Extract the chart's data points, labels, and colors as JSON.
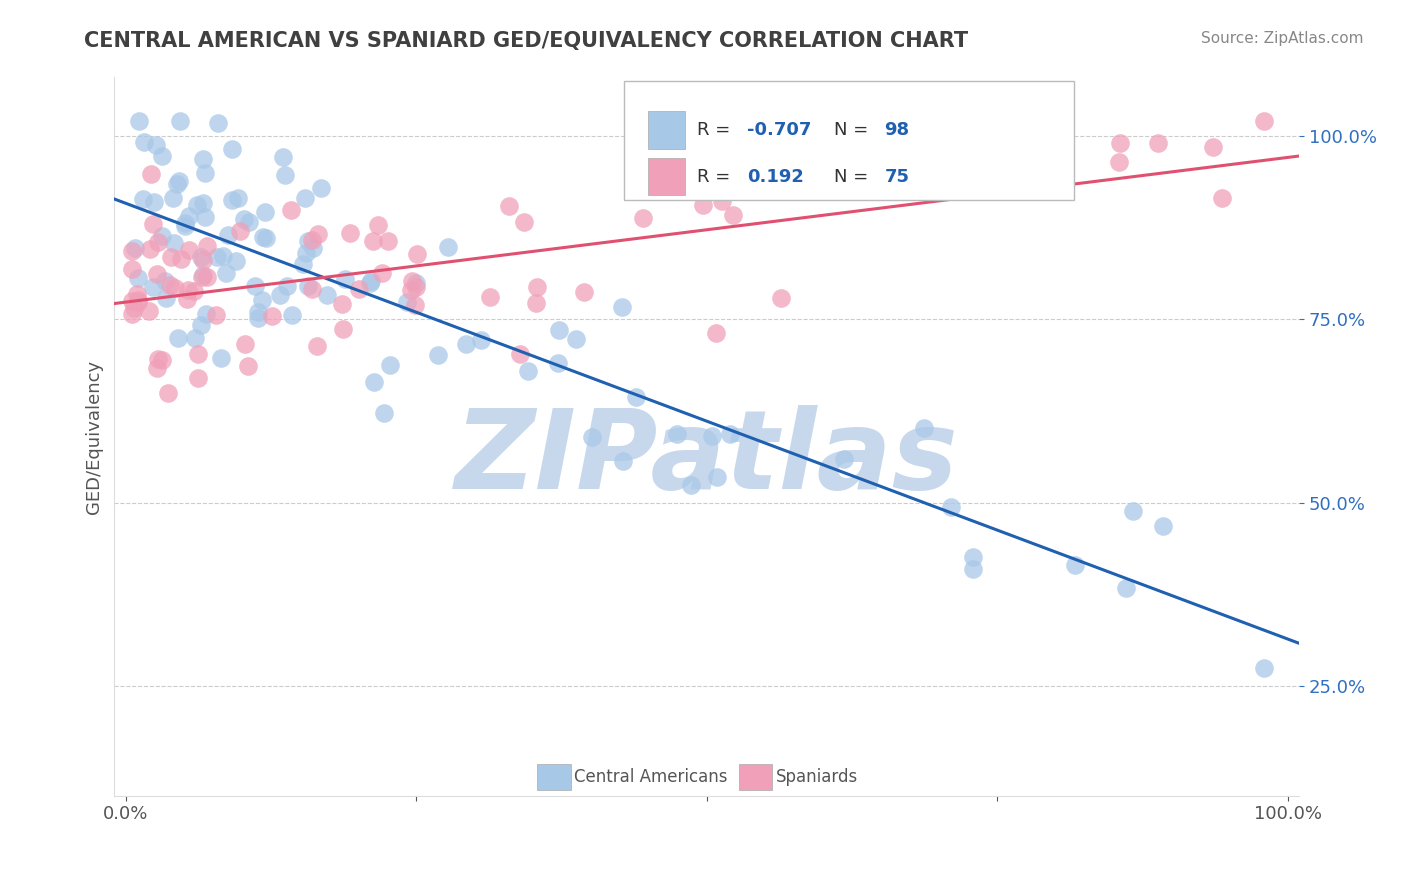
{
  "title": "CENTRAL AMERICAN VS SPANIARD GED/EQUIVALENCY CORRELATION CHART",
  "source": "Source: ZipAtlas.com",
  "ylabel": "GED/Equivalency",
  "blue_R": -0.707,
  "blue_N": 98,
  "pink_R": 0.192,
  "pink_N": 75,
  "blue_color": "#A8C8E8",
  "pink_color": "#F0A0B8",
  "blue_line_color": "#2060B0",
  "pink_line_color": "#E05070",
  "legend_label_blue": "Central Americans",
  "legend_label_pink": "Spaniards",
  "background_color": "#FFFFFF",
  "watermark_text": "ZIPatlas",
  "watermark_color": "#C8D8EC",
  "title_color": "#404040",
  "source_color": "#888888",
  "axis_color": "#555555",
  "grid_color": "#CCCCCC",
  "ytick_color": "#3070C0",
  "blue_slope": -0.62,
  "blue_intercept": 0.91,
  "pink_slope": 0.18,
  "pink_intercept": 0.78
}
